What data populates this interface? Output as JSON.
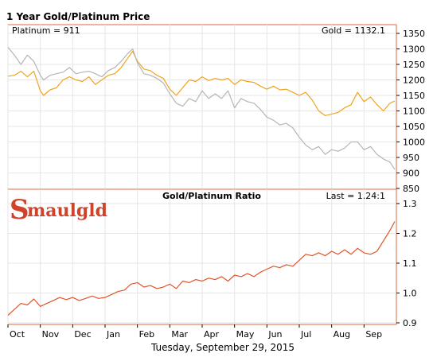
{
  "header": {
    "title": "1 Year Gold/Platinum Price",
    "platinum_label": "Platinum = 911",
    "gold_label": "Gold = 1132.1",
    "ratio_title": "Gold/Platinum Ratio",
    "ratio_last": "Last = 1.24:1",
    "date": "Tuesday, September 29, 2015",
    "logo_initial": "S",
    "logo_rest": "maulgld"
  },
  "colors": {
    "gold": "#f0a31c",
    "platinum": "#b5b5b5",
    "ratio": "#e0552a",
    "border": "#e06a3a",
    "grid": "#e6e6e6",
    "logo": "#d0422a"
  },
  "chart_data": [
    {
      "type": "line",
      "title": "1 Year Gold/Platinum Price",
      "ylim": [
        850,
        1350
      ],
      "y_ticks": [
        "850",
        "900",
        "950",
        "1000",
        "1050",
        "1100",
        "1150",
        "1200",
        "1250",
        "1300",
        "1350"
      ],
      "x_ticks": [
        "Oct",
        "Nov",
        "Dec",
        "Jan",
        "Feb",
        "Mar",
        "Apr",
        "May",
        "Jun",
        "Jul",
        "Aug",
        "Sep"
      ],
      "x_tick_months": [
        0,
        1,
        2,
        3,
        4,
        5,
        6,
        7,
        8,
        9,
        10,
        11
      ],
      "x_range": [
        0,
        12
      ],
      "series": [
        {
          "name": "Gold",
          "x": [
            0.0,
            0.2,
            0.4,
            0.6,
            0.8,
            1.0,
            1.1,
            1.3,
            1.5,
            1.7,
            1.9,
            2.1,
            2.3,
            2.5,
            2.7,
            2.9,
            3.1,
            3.3,
            3.5,
            3.7,
            3.85,
            4.0,
            4.2,
            4.4,
            4.6,
            4.8,
            5.0,
            5.2,
            5.4,
            5.6,
            5.8,
            6.0,
            6.2,
            6.4,
            6.6,
            6.8,
            7.0,
            7.2,
            7.4,
            7.6,
            7.8,
            8.0,
            8.2,
            8.4,
            8.6,
            8.8,
            9.0,
            9.2,
            9.4,
            9.6,
            9.8,
            10.0,
            10.2,
            10.4,
            10.6,
            10.8,
            11.0,
            11.2,
            11.4,
            11.6,
            11.8,
            11.95
          ],
          "y": [
            1212,
            1215,
            1228,
            1210,
            1228,
            1165,
            1150,
            1168,
            1175,
            1200,
            1210,
            1200,
            1195,
            1210,
            1185,
            1200,
            1215,
            1220,
            1240,
            1270,
            1292,
            1260,
            1235,
            1230,
            1215,
            1205,
            1170,
            1150,
            1175,
            1200,
            1195,
            1210,
            1198,
            1205,
            1200,
            1205,
            1185,
            1200,
            1195,
            1192,
            1180,
            1170,
            1180,
            1168,
            1170,
            1160,
            1150,
            1160,
            1135,
            1100,
            1085,
            1090,
            1095,
            1110,
            1120,
            1160,
            1130,
            1145,
            1120,
            1100,
            1125,
            1132
          ]
        },
        {
          "name": "Platinum",
          "x": [
            0.0,
            0.2,
            0.4,
            0.6,
            0.8,
            1.0,
            1.1,
            1.3,
            1.5,
            1.7,
            1.9,
            2.1,
            2.3,
            2.5,
            2.7,
            2.9,
            3.1,
            3.3,
            3.5,
            3.7,
            3.85,
            4.0,
            4.2,
            4.4,
            4.6,
            4.8,
            5.0,
            5.2,
            5.4,
            5.6,
            5.8,
            6.0,
            6.2,
            6.4,
            6.6,
            6.8,
            7.0,
            7.2,
            7.4,
            7.6,
            7.8,
            8.0,
            8.2,
            8.4,
            8.6,
            8.8,
            9.0,
            9.2,
            9.4,
            9.6,
            9.8,
            10.0,
            10.2,
            10.4,
            10.6,
            10.8,
            11.0,
            11.2,
            11.4,
            11.6,
            11.8,
            11.95
          ],
          "y": [
            1305,
            1280,
            1250,
            1280,
            1260,
            1215,
            1200,
            1215,
            1220,
            1225,
            1240,
            1220,
            1225,
            1228,
            1220,
            1210,
            1230,
            1240,
            1260,
            1285,
            1300,
            1255,
            1220,
            1215,
            1205,
            1190,
            1155,
            1125,
            1115,
            1140,
            1130,
            1165,
            1140,
            1155,
            1140,
            1165,
            1110,
            1140,
            1130,
            1125,
            1105,
            1080,
            1070,
            1055,
            1060,
            1045,
            1015,
            990,
            975,
            985,
            960,
            975,
            970,
            980,
            1000,
            1000,
            975,
            985,
            960,
            945,
            935,
            911
          ]
        }
      ]
    },
    {
      "type": "line",
      "title": "Gold/Platinum Ratio",
      "ylim": [
        0.9,
        1.3
      ],
      "y_ticks": [
        "0.9",
        "1.0",
        "1.1",
        "1.2",
        "1.3"
      ],
      "x_ticks": [
        "Oct",
        "Nov",
        "Dec",
        "Jan",
        "Feb",
        "Mar",
        "Apr",
        "May",
        "Jun",
        "Jul",
        "Aug",
        "Sep"
      ],
      "x_tick_months": [
        0,
        1,
        2,
        3,
        4,
        5,
        6,
        7,
        8,
        9,
        10,
        11
      ],
      "x_range": [
        0,
        12
      ],
      "series": [
        {
          "name": "Gold/Platinum Ratio",
          "x": [
            0.0,
            0.2,
            0.4,
            0.6,
            0.8,
            1.0,
            1.2,
            1.4,
            1.6,
            1.8,
            2.0,
            2.2,
            2.4,
            2.6,
            2.8,
            3.0,
            3.2,
            3.4,
            3.6,
            3.8,
            4.0,
            4.2,
            4.4,
            4.6,
            4.8,
            5.0,
            5.2,
            5.4,
            5.6,
            5.8,
            6.0,
            6.2,
            6.4,
            6.6,
            6.8,
            7.0,
            7.2,
            7.4,
            7.6,
            7.8,
            8.0,
            8.2,
            8.4,
            8.6,
            8.8,
            9.0,
            9.2,
            9.4,
            9.6,
            9.8,
            10.0,
            10.2,
            10.4,
            10.6,
            10.8,
            11.0,
            11.2,
            11.4,
            11.6,
            11.8,
            11.95
          ],
          "y": [
            0.925,
            0.945,
            0.965,
            0.96,
            0.98,
            0.955,
            0.965,
            0.975,
            0.985,
            0.978,
            0.985,
            0.975,
            0.982,
            0.99,
            0.982,
            0.985,
            0.995,
            1.005,
            1.01,
            1.03,
            1.035,
            1.02,
            1.025,
            1.015,
            1.02,
            1.03,
            1.015,
            1.04,
            1.035,
            1.045,
            1.04,
            1.05,
            1.045,
            1.055,
            1.04,
            1.06,
            1.055,
            1.065,
            1.055,
            1.07,
            1.08,
            1.09,
            1.085,
            1.095,
            1.09,
            1.11,
            1.13,
            1.125,
            1.135,
            1.125,
            1.14,
            1.13,
            1.145,
            1.13,
            1.15,
            1.135,
            1.13,
            1.14,
            1.175,
            1.21,
            1.24
          ]
        }
      ]
    }
  ]
}
